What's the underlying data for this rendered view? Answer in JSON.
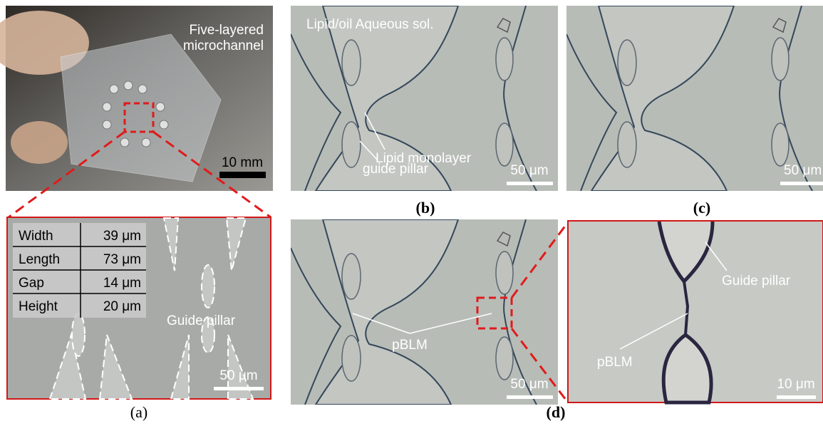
{
  "panels": {
    "a": {
      "photo_label_lines": [
        "Five-layered",
        "microchannel"
      ],
      "photo_scale": "10 mm",
      "table": {
        "rows": [
          [
            "Width",
            "39 μm"
          ],
          [
            "Length",
            "73 μm"
          ],
          [
            "Gap",
            "14 μm"
          ],
          [
            "Height",
            "20 μm"
          ]
        ]
      },
      "pillar_label": "Guide pillar",
      "scale": "50 μm",
      "caption": "(a)"
    },
    "b": {
      "top_label": "Lipid/oil Aqueous sol.",
      "monolayer_label": "Lipid monolayer",
      "pillar_label": "guide pillar",
      "scale": "50 μm",
      "caption": "(b)"
    },
    "c": {
      "scale": "50 μm",
      "caption": "(c)"
    },
    "d": {
      "membrane_label": "pBLM",
      "scale": "50 μm",
      "zoom_pillar_label": "Guide pillar",
      "zoom_membrane_label": "pBLM",
      "zoom_scale": "10 μm",
      "caption": "(d)"
    }
  }
}
